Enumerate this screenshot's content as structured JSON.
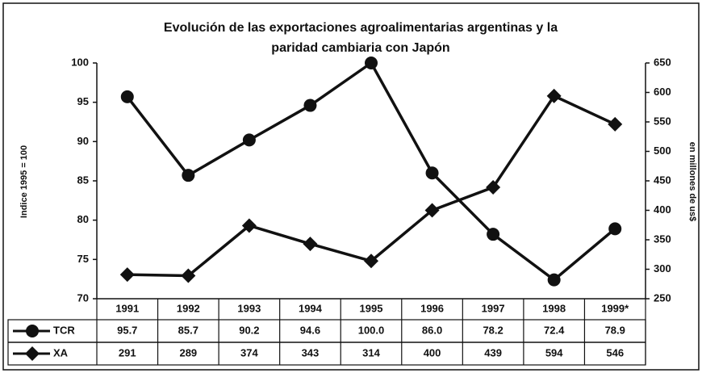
{
  "chart_data": {
    "type": "line",
    "title": [
      "Evolución de las exportaciones agroalimentarias argentinas y la",
      "paridad cambiaria con Japón"
    ],
    "ylabel": "Indice 1995 = 100",
    "y2label": "en millones de us$",
    "categories": [
      "1991",
      "1992",
      "1993",
      "1994",
      "1995",
      "1996",
      "1997",
      "1998",
      "1999*"
    ],
    "series": [
      {
        "name": "TCR",
        "color": "#111111",
        "marker": "circle",
        "values": [
          95.7,
          85.7,
          90.2,
          94.6,
          100,
          86,
          78.2,
          72.4,
          78.9
        ],
        "value_labels": [
          "95.7",
          "85.7",
          "90.2",
          "94.6",
          "100.0",
          "86.0",
          "78.2",
          "72.4",
          "78.9"
        ]
      },
      {
        "name": "XA",
        "color": "#111111",
        "marker": "diamond",
        "axis": "y2",
        "values": [
          291,
          289,
          374,
          343,
          314,
          400,
          439,
          594,
          546
        ],
        "value_labels": [
          "291",
          "289",
          "374",
          "343",
          "314",
          "400",
          "439",
          "594",
          "546"
        ]
      }
    ],
    "ylim": [
      70,
      100
    ],
    "yticks": [
      70,
      75,
      80,
      85,
      90,
      95,
      100
    ],
    "y2lim": [
      250,
      650
    ],
    "y2ticks": [
      250,
      300,
      350,
      400,
      450,
      500,
      550,
      600,
      650
    ],
    "grid": false
  }
}
